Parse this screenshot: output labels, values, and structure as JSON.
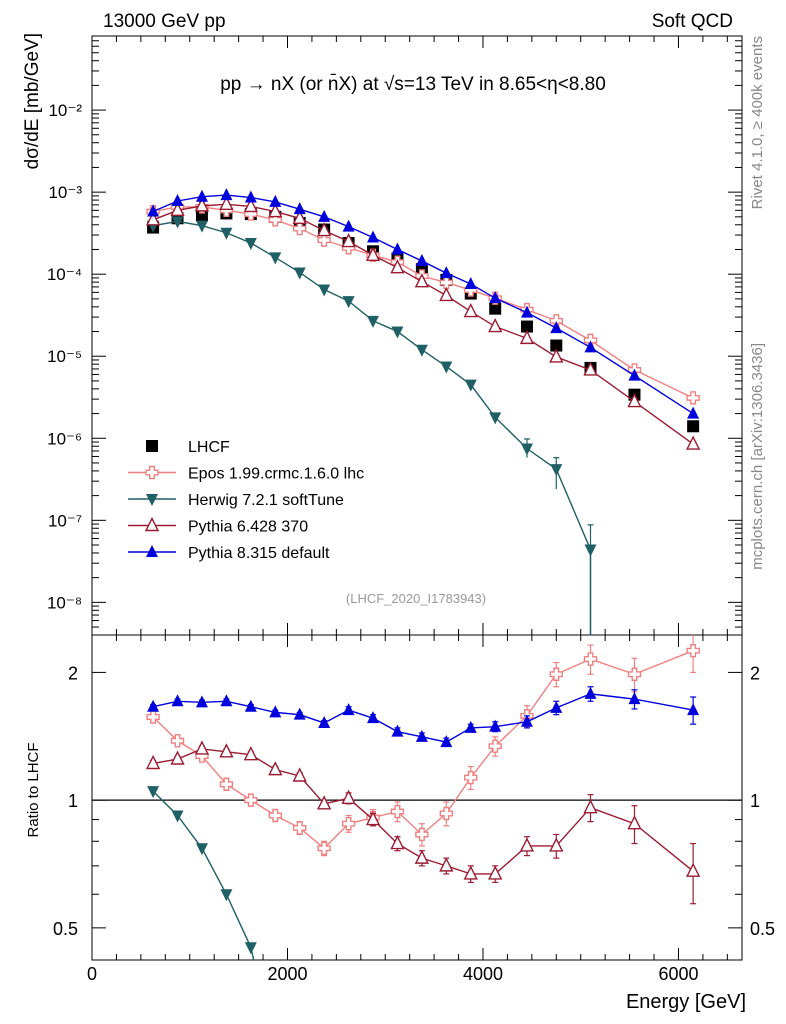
{
  "header": {
    "left": "13000 GeV pp",
    "right": "Soft QCD"
  },
  "side_text": {
    "rivet": "Rivet 4.1.0, ≥ 400k events",
    "mcplots": "mcplots.cern.ch [arXiv:1306.3436]"
  },
  "analysis_label": "(LHCF_2020_I1783943)",
  "chart_data": {
    "type": "scatter",
    "title": "pp → nX (or n̄X) at √s=13 TeV in 8.65<η<8.80",
    "xlabel": "Energy [GeV]",
    "ylabel": "dσ/dE [mb/GeV]",
    "ratio_ylabel": "Ratio to LHCF",
    "xlim": [
      0,
      6650
    ],
    "ylim": [
      4e-09,
      0.08
    ],
    "yscale": "log",
    "ratio_ylim": [
      0.42,
      2.45
    ],
    "ratio_yscale": "log",
    "x_ticks": [
      "0",
      "2000",
      "4000",
      "6000"
    ],
    "x_tick_values": [
      0,
      2000,
      4000,
      6000
    ],
    "y_tick_labels": [
      "10^-8",
      "10^-7",
      "10^-6",
      "10^-5",
      "10^-4",
      "10^-3",
      "10^-2"
    ],
    "ratio_tick_labels": [
      "0.5",
      "1",
      "2"
    ],
    "ratio_tick_values": [
      0.5,
      1,
      2
    ],
    "x": [
      625,
      875,
      1125,
      1375,
      1625,
      1875,
      2125,
      2375,
      2625,
      2875,
      3125,
      3375,
      3625,
      3875,
      4125,
      4450,
      4750,
      5100,
      5550,
      6150
    ],
    "series": [
      {
        "name": "LHCF",
        "color": "#000000",
        "marker": "square",
        "values": [
          0.00037,
          0.00048,
          0.00052,
          0.00055,
          0.00054,
          0.0005,
          0.00042,
          0.00035,
          0.00024,
          0.00019,
          0.000155,
          0.000115,
          8.5e-05,
          5.8e-05,
          3.8e-05,
          2.3e-05,
          1.35e-05,
          7.2e-06,
          3.4e-06,
          1.4e-06
        ]
      },
      {
        "name": "Epos 1.99.crmc.1.6.0 lhc",
        "color": "#f08080",
        "marker": "cross",
        "values": [
          0.00058,
          0.00066,
          0.00066,
          0.0006,
          0.00054,
          0.00046,
          0.00036,
          0.00026,
          0.00021,
          0.00017,
          0.00014,
          9.5e-05,
          7.9e-05,
          6.4e-05,
          5.1e-05,
          3.7e-05,
          2.7e-05,
          1.56e-05,
          6.8e-06,
          3.1e-06
        ],
        "ratio": [
          1.57,
          1.38,
          1.27,
          1.09,
          1.0,
          0.92,
          0.86,
          0.77,
          0.88,
          0.91,
          0.94,
          0.83,
          0.93,
          1.13,
          1.34,
          1.58,
          1.98,
          2.15,
          1.98,
          2.25
        ],
        "ratio_err": [
          0.03,
          0.02,
          0.02,
          0.02,
          0.02,
          0.02,
          0.03,
          0.03,
          0.04,
          0.04,
          0.05,
          0.05,
          0.06,
          0.07,
          0.07,
          0.09,
          0.13,
          0.17,
          0.18,
          0.25
        ]
      },
      {
        "name": "Herwig 7.2.1 softTune",
        "color": "#1f5f66",
        "marker": "triangle-down",
        "values": [
          0.00039,
          0.00044,
          0.00039,
          0.00032,
          0.00024,
          0.00016,
          0.000105,
          6.5e-05,
          4.7e-05,
          2.7e-05,
          2e-05,
          1.2e-05,
          7.5e-06,
          4.5e-06,
          1.8e-06,
          7.5e-07,
          4.2e-07,
          4.4e-08
        ],
        "ratio": [
          1.05,
          0.92,
          0.77,
          0.6,
          0.45
        ]
      },
      {
        "name": "Pythia 6.428 370",
        "color": "#9b1b30",
        "marker": "triangle-open",
        "values": [
          0.00046,
          0.0006,
          0.00068,
          0.00071,
          0.00067,
          0.00058,
          0.00048,
          0.00034,
          0.00025,
          0.00017,
          0.00012,
          8.1e-05,
          5.5e-05,
          3.5e-05,
          2.3e-05,
          1.65e-05,
          9.8e-06,
          6.8e-06,
          2.8e-06,
          8.5e-07
        ],
        "ratio": [
          1.22,
          1.25,
          1.32,
          1.3,
          1.28,
          1.18,
          1.14,
          0.98,
          1.01,
          0.9,
          0.79,
          0.73,
          0.7,
          0.67,
          0.67,
          0.78,
          0.78,
          0.96,
          0.88,
          0.68
        ],
        "ratio_err": [
          0.02,
          0.02,
          0.02,
          0.02,
          0.02,
          0.02,
          0.02,
          0.02,
          0.03,
          0.03,
          0.03,
          0.03,
          0.03,
          0.03,
          0.03,
          0.04,
          0.05,
          0.07,
          0.09,
          0.11
        ]
      },
      {
        "name": "Pythia 8.315 default",
        "color": "#0000dd",
        "marker": "triangle",
        "values": [
          0.00058,
          0.00078,
          0.00088,
          0.00092,
          0.00086,
          0.00076,
          0.00062,
          0.0005,
          0.00038,
          0.00028,
          0.0002,
          0.000145,
          0.000103,
          7.6e-05,
          5.1e-05,
          3.4e-05,
          2.2e-05,
          1.28e-05,
          5.8e-06,
          2e-06
        ],
        "ratio": [
          1.66,
          1.71,
          1.7,
          1.71,
          1.66,
          1.61,
          1.59,
          1.52,
          1.63,
          1.56,
          1.45,
          1.41,
          1.37,
          1.48,
          1.49,
          1.53,
          1.65,
          1.78,
          1.73,
          1.63
        ],
        "ratio_err": [
          0.02,
          0.02,
          0.02,
          0.02,
          0.02,
          0.02,
          0.02,
          0.02,
          0.03,
          0.03,
          0.03,
          0.03,
          0.03,
          0.03,
          0.04,
          0.05,
          0.06,
          0.07,
          0.09,
          0.12
        ]
      }
    ]
  }
}
